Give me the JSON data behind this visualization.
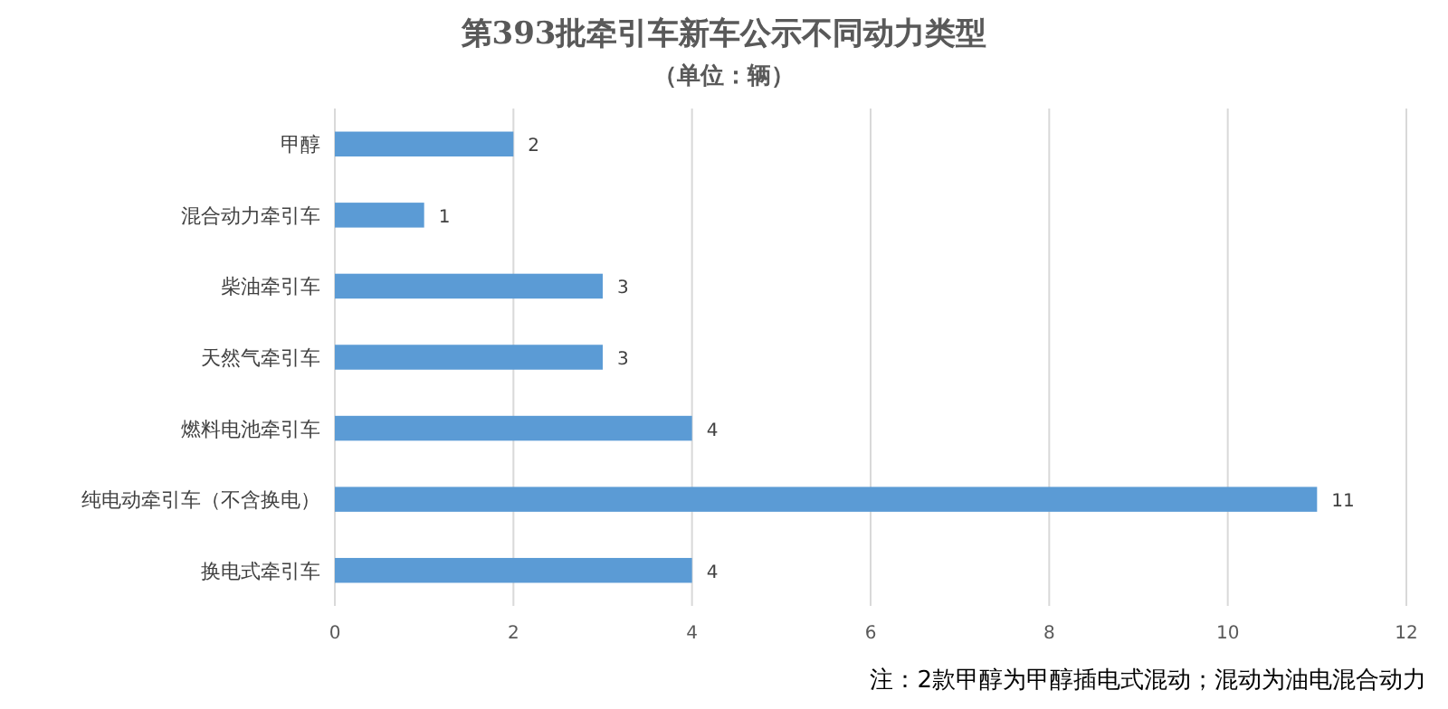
{
  "chart_data": {
    "type": "bar",
    "orientation": "horizontal",
    "title": "第393批牵引车新车公示不同动力类型",
    "subtitle": "（单位：辆）",
    "categories": [
      "甲醇",
      "混合动力牵引车",
      "柴油牵引车",
      "天然气牵引车",
      "燃料电池牵引车",
      "纯电动牵引车（不含换电）",
      "换电式牵引车"
    ],
    "values": [
      2,
      1,
      3,
      3,
      4,
      11,
      4
    ],
    "color": "#5b9bd5",
    "xlim": [
      0,
      12
    ],
    "xticks": [
      0,
      2,
      4,
      6,
      8,
      10,
      12
    ],
    "grid": "x",
    "data_labels": true,
    "annotations": [
      "注：2款甲醇为甲醇插电式混动；混动为油电混合动力"
    ]
  }
}
